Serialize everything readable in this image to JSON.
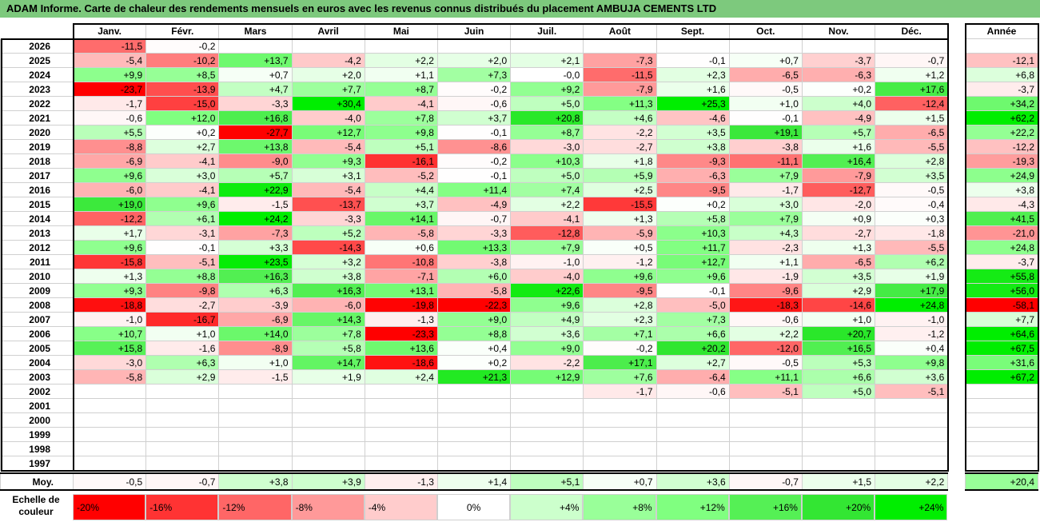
{
  "title": "ADAM Informe. Carte de chaleur des rendements mensuels en euros avec les revenus connus distribués du placement AMBUJA CEMENTS LTD",
  "chart_data": {
    "type": "heatmap",
    "months": [
      "Janv.",
      "Févr.",
      "Mars",
      "Avril",
      "Mai",
      "Juin",
      "Juil.",
      "Août",
      "Sept.",
      "Oct.",
      "Nov.",
      "Déc."
    ],
    "annual_header": "Année",
    "rows": [
      {
        "year": "2026",
        "values": [
          "-11,5",
          "-0,2",
          "",
          "",
          "",
          "",
          "",
          "",
          "",
          "",
          "",
          ""
        ],
        "annual": ""
      },
      {
        "year": "2025",
        "values": [
          "-5,4",
          "-10,2",
          "+13,7",
          "-4,2",
          "+2,2",
          "+2,0",
          "+2,1",
          "-7,3",
          "-0,1",
          "+0,7",
          "-3,7",
          "-0,7"
        ],
        "annual": "-12,1"
      },
      {
        "year": "2024",
        "values": [
          "+9,9",
          "+8,5",
          "+0,7",
          "+2,0",
          "+1,1",
          "+7,3",
          "-0,0",
          "-11,5",
          "+2,3",
          "-6,5",
          "-6,3",
          "+1,2"
        ],
        "annual": "+6,8"
      },
      {
        "year": "2023",
        "values": [
          "-23,7",
          "-13,9",
          "+4,7",
          "+7,7",
          "+8,7",
          "-0,2",
          "+9,2",
          "-7,9",
          "+1,6",
          "-0,5",
          "+0,2",
          "+17,6"
        ],
        "annual": "-3,7"
      },
      {
        "year": "2022",
        "values": [
          "-1,7",
          "-15,0",
          "-3,3",
          "+30,4",
          "-4,1",
          "-0,6",
          "+5,0",
          "+11,3",
          "+25,3",
          "+1,0",
          "+4,0",
          "-12,4"
        ],
        "annual": "+34,2"
      },
      {
        "year": "2021",
        "values": [
          "-0,6",
          "+12,0",
          "+16,8",
          "-4,0",
          "+7,8",
          "+3,7",
          "+20,8",
          "+4,6",
          "-4,6",
          "-0,1",
          "-4,9",
          "+1,5"
        ],
        "annual": "+62,2"
      },
      {
        "year": "2020",
        "values": [
          "+5,5",
          "+0,2",
          "-27,7",
          "+12,7",
          "+9,8",
          "-0,1",
          "+8,7",
          "-2,2",
          "+3,5",
          "+19,1",
          "+5,7",
          "-6,5"
        ],
        "annual": "+22,2"
      },
      {
        "year": "2019",
        "values": [
          "-8,8",
          "+2,7",
          "+13,8",
          "-5,4",
          "+5,1",
          "-8,6",
          "-3,0",
          "-2,7",
          "+3,8",
          "-3,8",
          "+1,6",
          "-5,5"
        ],
        "annual": "-12,2"
      },
      {
        "year": "2018",
        "values": [
          "-6,9",
          "-4,1",
          "-9,0",
          "+9,3",
          "-16,1",
          "-0,2",
          "+10,3",
          "+1,8",
          "-9,3",
          "-11,1",
          "+16,4",
          "+2,8"
        ],
        "annual": "-19,3"
      },
      {
        "year": "2017",
        "values": [
          "+9,6",
          "+3,0",
          "+5,7",
          "+3,1",
          "-5,2",
          "-0,1",
          "+5,0",
          "+5,9",
          "-6,3",
          "+7,9",
          "-7,9",
          "+3,5"
        ],
        "annual": "+24,9"
      },
      {
        "year": "2016",
        "values": [
          "-6,0",
          "-4,1",
          "+22,9",
          "-5,4",
          "+4,4",
          "+11,4",
          "+7,4",
          "+2,5",
          "-9,5",
          "-1,7",
          "-12,7",
          "-0,5"
        ],
        "annual": "+3,8"
      },
      {
        "year": "2015",
        "values": [
          "+19,0",
          "+9,6",
          "-1,5",
          "-13,7",
          "+3,7",
          "-4,9",
          "+2,2",
          "-15,5",
          "+0,2",
          "+3,0",
          "-2,0",
          "-0,4"
        ],
        "annual": "-4,3"
      },
      {
        "year": "2014",
        "values": [
          "-12,2",
          "+6,1",
          "+24,2",
          "-3,3",
          "+14,1",
          "-0,7",
          "-4,1",
          "+1,3",
          "+5,8",
          "+7,9",
          "+0,9",
          "+0,3"
        ],
        "annual": "+41,5"
      },
      {
        "year": "2013",
        "values": [
          "+1,7",
          "-3,1",
          "-7,3",
          "+5,2",
          "-5,8",
          "-3,3",
          "-12,8",
          "-5,9",
          "+10,3",
          "+4,3",
          "-2,7",
          "-1,8"
        ],
        "annual": "-21,0"
      },
      {
        "year": "2012",
        "values": [
          "+9,6",
          "-0,1",
          "+3,3",
          "-14,3",
          "+0,6",
          "+13,3",
          "+7,9",
          "+0,5",
          "+11,7",
          "-2,3",
          "+1,3",
          "-5,5"
        ],
        "annual": "+24,8"
      },
      {
        "year": "2011",
        "values": [
          "-15,8",
          "-5,1",
          "+23,5",
          "+3,2",
          "-10,8",
          "-3,8",
          "-1,0",
          "-1,2",
          "+12,7",
          "+1,1",
          "-6,5",
          "+6,2"
        ],
        "annual": "-3,7"
      },
      {
        "year": "2010",
        "values": [
          "+1,3",
          "+8,8",
          "+16,3",
          "+3,8",
          "-7,1",
          "+6,0",
          "-4,0",
          "+9,6",
          "+9,6",
          "-1,9",
          "+3,5",
          "+1,9"
        ],
        "annual": "+55,8"
      },
      {
        "year": "2009",
        "values": [
          "+9,3",
          "-9,8",
          "+6,3",
          "+16,3",
          "+13,1",
          "-5,8",
          "+22,6",
          "-9,5",
          "-0,1",
          "-9,6",
          "+2,9",
          "+17,9"
        ],
        "annual": "+56,0"
      },
      {
        "year": "2008",
        "values": [
          "-18,8",
          "-2,7",
          "-3,9",
          "-6,0",
          "-19,8",
          "-22,3",
          "+9,6",
          "+2,8",
          "-5,0",
          "-18,3",
          "-14,6",
          "+24,8"
        ],
        "annual": "-58,1"
      },
      {
        "year": "2007",
        "values": [
          "-1,0",
          "-16,7",
          "-6,9",
          "+14,3",
          "-1,3",
          "+9,0",
          "+4,9",
          "+2,3",
          "+7,3",
          "-0,6",
          "+1,0",
          "-1,0"
        ],
        "annual": "+7,7"
      },
      {
        "year": "2006",
        "values": [
          "+10,7",
          "+1,0",
          "+14,0",
          "+7,8",
          "-23,3",
          "+8,8",
          "+3,6",
          "+7,1",
          "+6,6",
          "+2,2",
          "+20,7",
          "-1,2"
        ],
        "annual": "+64,6"
      },
      {
        "year": "2005",
        "values": [
          "+15,8",
          "-1,6",
          "-8,9",
          "+5,8",
          "+13,6",
          "+0,4",
          "+9,0",
          "-0,2",
          "+20,2",
          "-12,0",
          "+16,5",
          "+0,4"
        ],
        "annual": "+67,5"
      },
      {
        "year": "2004",
        "values": [
          "-3,0",
          "+6,3",
          "+1,0",
          "+14,7",
          "-18,6",
          "+0,2",
          "-2,2",
          "+17,1",
          "+2,7",
          "-0,5",
          "+5,3",
          "+9,8"
        ],
        "annual": "+31,6"
      },
      {
        "year": "2003",
        "values": [
          "-5,8",
          "+2,9",
          "-1,5",
          "+1,9",
          "+2,4",
          "+21,3",
          "+12,9",
          "+7,6",
          "-6,4",
          "+11,1",
          "+6,6",
          "+3,6"
        ],
        "annual": "+67,2"
      },
      {
        "year": "2002",
        "values": [
          "",
          "",
          "",
          "",
          "",
          "",
          "",
          "-1,7",
          "-0,6",
          "-5,1",
          "+5,0",
          "-5,1"
        ],
        "annual": ""
      },
      {
        "year": "2001",
        "values": [
          "",
          "",
          "",
          "",
          "",
          "",
          "",
          "",
          "",
          "",
          "",
          ""
        ],
        "annual": ""
      },
      {
        "year": "2000",
        "values": [
          "",
          "",
          "",
          "",
          "",
          "",
          "",
          "",
          "",
          "",
          "",
          ""
        ],
        "annual": ""
      },
      {
        "year": "1999",
        "values": [
          "",
          "",
          "",
          "",
          "",
          "",
          "",
          "",
          "",
          "",
          "",
          ""
        ],
        "annual": ""
      },
      {
        "year": "1998",
        "values": [
          "",
          "",
          "",
          "",
          "",
          "",
          "",
          "",
          "",
          "",
          "",
          ""
        ],
        "annual": ""
      },
      {
        "year": "1997",
        "values": [
          "",
          "",
          "",
          "",
          "",
          "",
          "",
          "",
          "",
          "",
          "",
          ""
        ],
        "annual": ""
      }
    ],
    "average": {
      "label": "Moy.",
      "values": [
        "-0,5",
        "-0,7",
        "+3,8",
        "+3,9",
        "-1,3",
        "+1,4",
        "+5,1",
        "+0,7",
        "+3,6",
        "-0,7",
        "+1,5",
        "+2,2"
      ],
      "annual": "+20,4"
    },
    "legend": {
      "label": "Echelle de couleur",
      "stops": [
        {
          "label": "-20%",
          "value": -20,
          "color": "#ff0000"
        },
        {
          "label": "-16%",
          "value": -16,
          "color": "#ff3333"
        },
        {
          "label": "-12%",
          "value": -12,
          "color": "#ff6666"
        },
        {
          "label": "-8%",
          "value": -8,
          "color": "#ff9999"
        },
        {
          "label": "-4%",
          "value": -4,
          "color": "#ffcccc"
        },
        {
          "label": "0%",
          "value": 0,
          "color": "#ffffff"
        },
        {
          "label": "+4%",
          "value": 4,
          "color": "#ccffcc"
        },
        {
          "label": "+8%",
          "value": 8,
          "color": "#99ff99"
        },
        {
          "label": "+12%",
          "value": 12,
          "color": "#80ff80"
        },
        {
          "label": "+16%",
          "value": 16,
          "color": "#55f055"
        },
        {
          "label": "+20%",
          "value": 20,
          "color": "#33e633"
        },
        {
          "label": "+24%",
          "value": 24,
          "color": "#00ee00"
        }
      ]
    }
  }
}
